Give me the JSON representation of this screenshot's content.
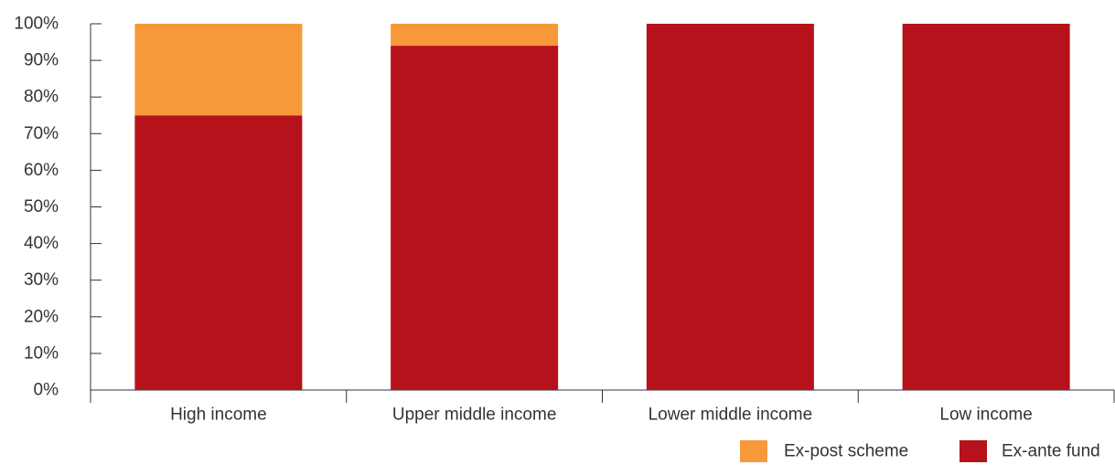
{
  "chart_data": {
    "type": "bar",
    "stacked": true,
    "categories": [
      "High income",
      "Upper middle income",
      "Lower middle income",
      "Low income"
    ],
    "series": [
      {
        "name": "Ex-ante fund",
        "values": [
          75,
          94,
          100,
          100
        ],
        "color": "#b5121b"
      },
      {
        "name": "Ex-post scheme",
        "values": [
          25,
          6,
          0,
          0
        ],
        "color": "#f7993a"
      }
    ],
    "ylim": [
      0,
      100
    ],
    "yticks": [
      "0%",
      "10%",
      "20%",
      "30%",
      "40%",
      "50%",
      "60%",
      "70%",
      "80%",
      "90%",
      "100%"
    ],
    "grid": false,
    "legend": {
      "position": "bottom-right",
      "order": [
        "Ex-post scheme",
        "Ex-ante fund"
      ]
    }
  }
}
